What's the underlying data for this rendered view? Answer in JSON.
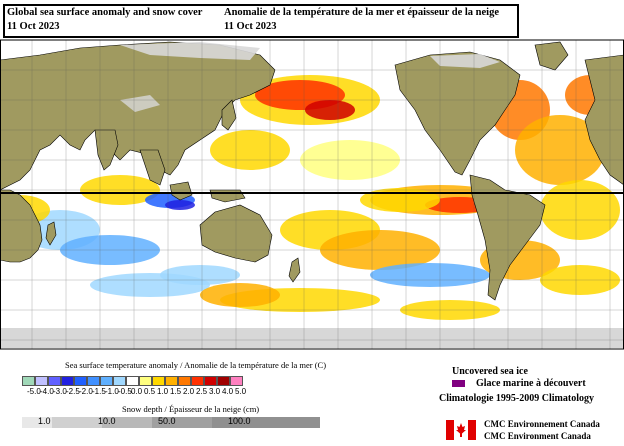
{
  "title": {
    "en_line1": "Global sea surface anomaly and snow cover",
    "en_date": "11 Oct 2023",
    "fr_line1": "Anomalie de la température de la mer et épaisseur de la neige",
    "fr_date": "11 Oct 2023"
  },
  "sst_legend": {
    "title": "Sea surface temperature anomaly / Anomalie de la température de la mer (C)",
    "ticks": [
      "-5.0",
      "-4.0",
      "-3.0",
      "-2.5",
      "-2.0",
      "-1.5",
      "-1.0",
      "-0.5",
      "0.0",
      "0.5",
      "1.0",
      "1.5",
      "2.0",
      "2.5",
      "3.0",
      "4.0",
      "5.0"
    ],
    "colors": [
      "#a0d8b8",
      "#c0c0ff",
      "#6060ff",
      "#2020e0",
      "#2060ff",
      "#4090ff",
      "#60b0ff",
      "#a0d8ff",
      "#ffffff",
      "#ffff80",
      "#ffd800",
      "#ffb000",
      "#ff7800",
      "#ff3000",
      "#d00000",
      "#a00000",
      "#ff80c0"
    ]
  },
  "snow_legend": {
    "title": "Snow depth / Épaisseur de la neige (cm)",
    "ticks": [
      "1.0",
      "10.0",
      "50.0",
      "100.0"
    ],
    "colors": [
      "#e8e8e8",
      "#d0d0d0",
      "#b8b8b8",
      "#a0a0a0",
      "#909090"
    ]
  },
  "ice_legend": {
    "en": "Uncovered sea ice",
    "fr": "Glace marine à découvert",
    "color": "#800080"
  },
  "climatology": "Climatologie 1995-2009 Climatology",
  "credit": {
    "line1": "CMC Environnement Canada",
    "line2": "CMC Environment Canada"
  },
  "map": {
    "land_color": "#a09a60",
    "snow_color": "#d8d8d8",
    "ocean_color": "#ffffff",
    "equator_line": true
  }
}
